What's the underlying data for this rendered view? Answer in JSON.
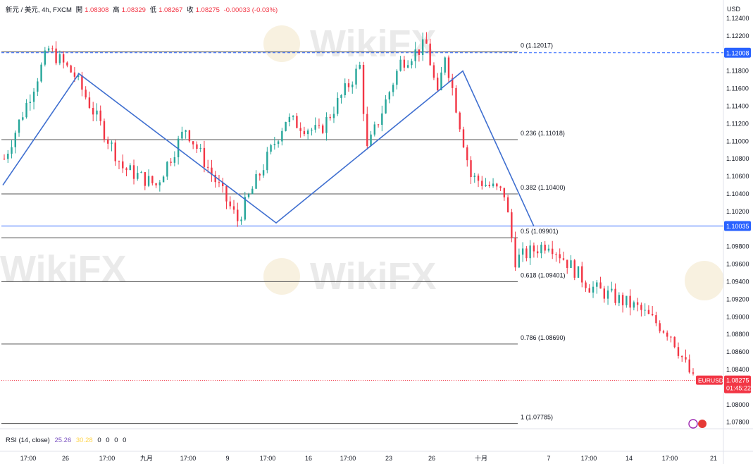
{
  "header": {
    "symbol": "新元 / 美元, 4h, FXCM",
    "open_label": "開",
    "open": "1.08308",
    "high_label": "高",
    "high": "1.08329",
    "low_label": "低",
    "low": "1.08267",
    "close_label": "收",
    "close": "1.08275",
    "change": "-0.00033 (-0.03%)"
  },
  "price_scale": {
    "currency": "USD",
    "ticks": [
      "1.12400",
      "1.12200",
      "1.12008",
      "1.11800",
      "1.11600",
      "1.11400",
      "1.11200",
      "1.11000",
      "1.10800",
      "1.10600",
      "1.10400",
      "1.10200",
      "1.10035",
      "1.09800",
      "1.09600",
      "1.09400",
      "1.09200",
      "1.09000",
      "1.08800",
      "1.08600",
      "1.08400",
      "1.08275",
      "1.08000",
      "1.07800"
    ],
    "tick_values": [
      1.124,
      1.122,
      1.12008,
      1.118,
      1.116,
      1.114,
      1.112,
      1.11,
      1.108,
      1.106,
      1.104,
      1.102,
      1.10035,
      1.098,
      1.096,
      1.094,
      1.092,
      1.09,
      1.088,
      1.086,
      1.084,
      1.08275,
      1.08,
      1.078
    ],
    "highlight_top": {
      "label": "1.12008",
      "value": 1.12008,
      "color": "#2962ff"
    },
    "highlight_mid": {
      "label": "1.10035",
      "value": 1.10035,
      "color": "#2962ff"
    },
    "current": {
      "symbol": "EURUSD",
      "label": "1.08275",
      "countdown": "01:45:22",
      "value": 1.08275,
      "color": "#f23645"
    }
  },
  "time_axis": {
    "labels": [
      "17:00",
      "26",
      "17:00",
      "九月",
      "17:00",
      "9",
      "17:00",
      "16",
      "17:00",
      "23",
      "26",
      "十月",
      "7",
      "17:00",
      "14",
      "17:00",
      "21"
    ]
  },
  "fib_levels": [
    {
      "label": "0 (1.12017)",
      "value": 1.12017
    },
    {
      "label": "0.236 (1.11018)",
      "value": 1.11018
    },
    {
      "label": "0.382 (1.10400)",
      "value": 1.104
    },
    {
      "label": "0.5 (1.09901)",
      "value": 1.09901
    },
    {
      "label": "0.618 (1.09401)",
      "value": 1.09401
    },
    {
      "label": "0.786 (1.08690)",
      "value": 1.0869
    },
    {
      "label": "1 (1.07785)",
      "value": 1.07785
    }
  ],
  "rsi": {
    "title": "RSI (14, close)",
    "value": "25.26",
    "ma": "30.28",
    "extras": [
      "0",
      "0",
      "0",
      "0"
    ]
  },
  "watermark": "WikiFX",
  "colors": {
    "up": "#26a69a",
    "down": "#f23645",
    "trend": "#3f6fd0",
    "fib": "#555555"
  },
  "chart_data": {
    "type": "candlestick",
    "title": "新元 / 美元, 4h, FXCM",
    "y_range": [
      1.077,
      1.125
    ],
    "zigzag": [
      1.105,
      1.1177,
      1.1007,
      1.118,
      1.1003
    ],
    "trend_lines": [
      1.12008,
      1.10035
    ],
    "segments": [
      {
        "from": 1.108,
        "to": 1.1205,
        "n": 13
      },
      {
        "from": 1.1205,
        "to": 1.1175,
        "n": 8
      },
      {
        "from": 1.1175,
        "to": 1.107,
        "n": 14
      },
      {
        "from": 1.107,
        "to": 1.105,
        "n": 10
      },
      {
        "from": 1.105,
        "to": 1.1115,
        "n": 9
      },
      {
        "from": 1.1115,
        "to": 1.101,
        "n": 15
      },
      {
        "from": 1.101,
        "to": 1.1125,
        "n": 14
      },
      {
        "from": 1.1125,
        "to": 1.111,
        "n": 10
      },
      {
        "from": 1.111,
        "to": 1.1185,
        "n": 12
      },
      {
        "from": 1.1185,
        "to": 1.109,
        "n": 3
      },
      {
        "from": 1.109,
        "to": 1.119,
        "n": 10
      },
      {
        "from": 1.119,
        "to": 1.121,
        "n": 8
      },
      {
        "from": 1.121,
        "to": 1.115,
        "n": 4
      },
      {
        "from": 1.115,
        "to": 1.12,
        "n": 3
      },
      {
        "from": 1.12,
        "to": 1.106,
        "n": 8
      },
      {
        "from": 1.106,
        "to": 1.104,
        "n": 10
      },
      {
        "from": 1.104,
        "to": 1.0965,
        "n": 4
      },
      {
        "from": 1.0965,
        "to": 1.0985,
        "n": 10
      },
      {
        "from": 1.0985,
        "to": 1.0935,
        "n": 12
      },
      {
        "from": 1.0935,
        "to": 1.091,
        "n": 14
      },
      {
        "from": 1.091,
        "to": 1.088,
        "n": 10
      },
      {
        "from": 1.088,
        "to": 1.0828,
        "n": 7
      }
    ]
  }
}
